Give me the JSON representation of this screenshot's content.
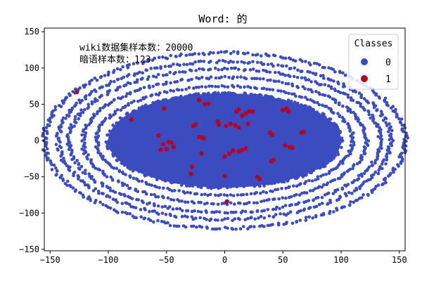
{
  "chart_data": {
    "type": "scatter",
    "title": "Word: 的",
    "xlabel": "",
    "ylabel": "",
    "xlim": [
      -155,
      155
    ],
    "ylim": [
      -152,
      155
    ],
    "xticks": [
      -150,
      -100,
      -50,
      0,
      50,
      100,
      150
    ],
    "yticks": [
      -150,
      -100,
      -50,
      0,
      50,
      100,
      150
    ],
    "grid": false,
    "annotations": [
      "wiki数据集样本数：20000",
      "暗语样本数：123"
    ],
    "legend": {
      "title": "Classes",
      "placement": "top-right",
      "entries": [
        "0",
        "1"
      ]
    },
    "series": [
      {
        "name": "0",
        "color": "#3b4cc0",
        "count": 20000,
        "distribution": "dense ellipse with outer concentric rings",
        "core_semi_axes": [
          100,
          65
        ],
        "rings": [
          [
            110,
            75
          ],
          [
            122,
            87
          ],
          [
            134,
            99
          ],
          [
            143,
            109
          ],
          [
            155,
            121
          ]
        ]
      },
      {
        "name": "1",
        "color": "#b40426",
        "count": 123,
        "clusters": [
          {
            "x": -127,
            "y": 67
          },
          {
            "x": -80,
            "y": 29
          },
          {
            "x": -52,
            "y": 44
          },
          {
            "x": -57,
            "y": 7
          },
          {
            "x": -53,
            "y": -5
          },
          {
            "x": -50,
            "y": -12
          },
          {
            "x": -55,
            "y": -13
          },
          {
            "x": -48,
            "y": -2
          },
          {
            "x": -44,
            "y": -9
          },
          {
            "x": -46,
            "y": -3
          },
          {
            "x": -27,
            "y": 20
          },
          {
            "x": -25,
            "y": 22
          },
          {
            "x": -22,
            "y": 56
          },
          {
            "x": -17,
            "y": 50
          },
          {
            "x": -14,
            "y": 51
          },
          {
            "x": -19,
            "y": 4
          },
          {
            "x": -22,
            "y": 5
          },
          {
            "x": -28,
            "y": -36
          },
          {
            "x": -29,
            "y": -46
          },
          {
            "x": -20,
            "y": -18
          },
          {
            "x": -5,
            "y": 22
          },
          {
            "x": -6,
            "y": 26
          },
          {
            "x": -18,
            "y": 3
          },
          {
            "x": 0,
            "y": -49
          },
          {
            "x": 2,
            "y": -84
          },
          {
            "x": 1,
            "y": 20
          },
          {
            "x": 5,
            "y": 23
          },
          {
            "x": 9,
            "y": 21
          },
          {
            "x": 12,
            "y": 18
          },
          {
            "x": 10,
            "y": 40
          },
          {
            "x": 12,
            "y": 43
          },
          {
            "x": 15,
            "y": 34
          },
          {
            "x": 18,
            "y": 37
          },
          {
            "x": 21,
            "y": 40
          },
          {
            "x": 4,
            "y": -18
          },
          {
            "x": 7,
            "y": -14
          },
          {
            "x": 12,
            "y": -15
          },
          {
            "x": 15,
            "y": -13
          },
          {
            "x": 18,
            "y": -11
          },
          {
            "x": 0,
            "y": -22
          },
          {
            "x": 20,
            "y": 23
          },
          {
            "x": 24,
            "y": 40
          },
          {
            "x": 28,
            "y": -50
          },
          {
            "x": 30,
            "y": -53
          },
          {
            "x": 39,
            "y": 11
          },
          {
            "x": 41,
            "y": 8
          },
          {
            "x": 40,
            "y": -29
          },
          {
            "x": 42,
            "y": -27
          },
          {
            "x": 50,
            "y": 42
          },
          {
            "x": 53,
            "y": 44
          },
          {
            "x": 55,
            "y": 40
          },
          {
            "x": 52,
            "y": -7
          },
          {
            "x": 56,
            "y": -9
          },
          {
            "x": 58,
            "y": -10
          },
          {
            "x": 66,
            "y": 11
          },
          {
            "x": 68,
            "y": 12
          }
        ]
      }
    ]
  }
}
